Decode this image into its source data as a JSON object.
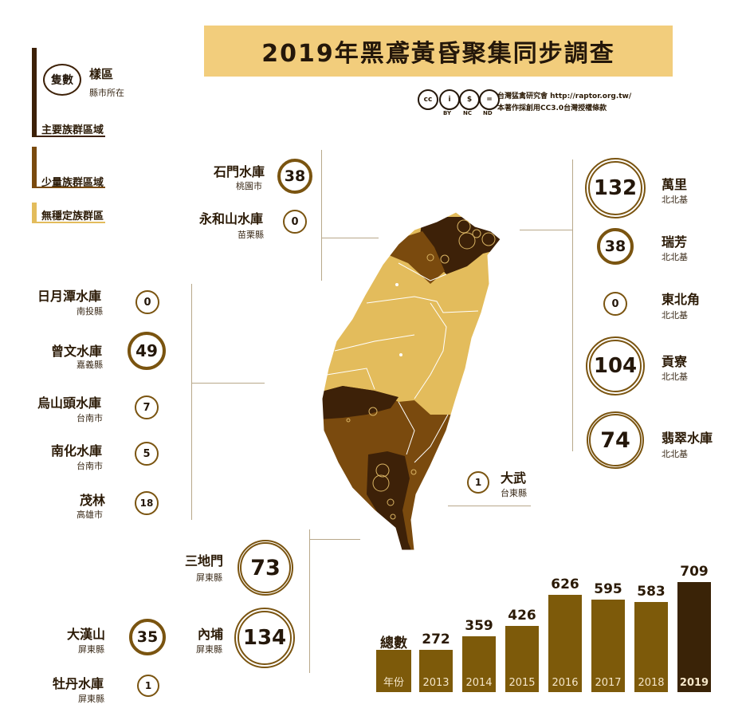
{
  "title": "2019年黑鳶黃昏聚集同步調查",
  "credit": {
    "badges": [
      "cc",
      "i",
      "$",
      "="
    ],
    "badge_labels": [
      "",
      "BY",
      "NC",
      "ND"
    ],
    "org": "台灣猛禽研究會 http://raptor.org.tw/",
    "license": "本著作採創用CC3.0台灣授權條款"
  },
  "legend": {
    "count_badge": "隻數",
    "site": "樣區",
    "county": "縣市所在",
    "major": "主要族群區域",
    "minor": "少量族群區域",
    "unstable": "無穩定族群區"
  },
  "colors": {
    "major": "#3d2108",
    "minor": "#7a4a0e",
    "unstable": "#e3bc5c",
    "ring": "#7a5410",
    "bar": "#7d5a0a",
    "bar_highlight": "#3a2307"
  },
  "sites": [
    {
      "name": "石門水庫",
      "county": "桃園市",
      "count": "38"
    },
    {
      "name": "永和山水庫",
      "county": "苗栗縣",
      "count": "0"
    },
    {
      "name": "日月潭水庫",
      "county": "南投縣",
      "count": "0"
    },
    {
      "name": "曾文水庫",
      "county": "嘉義縣",
      "count": "49"
    },
    {
      "name": "烏山頭水庫",
      "county": "台南市",
      "count": "7"
    },
    {
      "name": "南化水庫",
      "county": "台南市",
      "count": "5"
    },
    {
      "name": "茂林",
      "county": "高雄市",
      "count": "18"
    },
    {
      "name": "三地門",
      "county": "屏東縣",
      "count": "73"
    },
    {
      "name": "大漢山",
      "county": "屏東縣",
      "count": "35"
    },
    {
      "name": "內埔",
      "county": "屏東縣",
      "count": "134"
    },
    {
      "name": "牡丹水庫",
      "county": "屏東縣",
      "count": "1"
    },
    {
      "name": "萬里",
      "county": "北北基",
      "count": "132"
    },
    {
      "name": "瑞芳",
      "county": "北北基",
      "count": "38"
    },
    {
      "name": "東北角",
      "county": "北北基",
      "count": "0"
    },
    {
      "name": "貢寮",
      "county": "北北基",
      "count": "104"
    },
    {
      "name": "翡翠水庫",
      "county": "北北基",
      "count": "74"
    },
    {
      "name": "大武",
      "county": "台東縣",
      "count": "1"
    }
  ],
  "chart_data": {
    "type": "bar",
    "title": "總數",
    "xlabel": "年份",
    "categories": [
      "2013",
      "2014",
      "2015",
      "2016",
      "2017",
      "2018",
      "2019"
    ],
    "values": [
      272,
      359,
      426,
      626,
      595,
      583,
      709
    ],
    "highlight": "2019"
  }
}
